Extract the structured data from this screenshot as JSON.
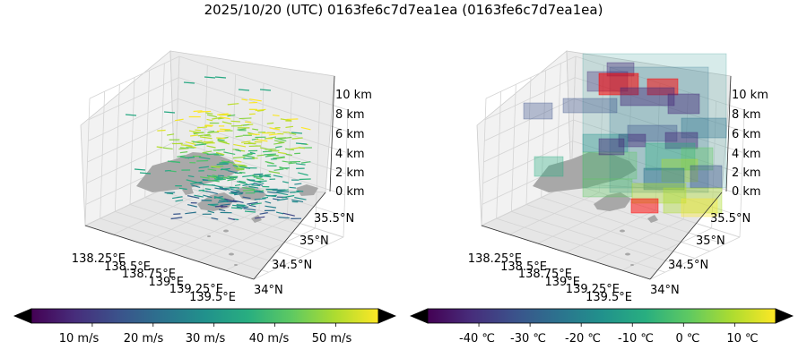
{
  "figure": {
    "title": "2025/10/20 (UTC) 0163fe6c7d7ea1ea (0163fe6c7d7ea1ea)"
  },
  "chart_data": [
    {
      "type": "3d-vector-field",
      "panel": "wind",
      "x_tick_labels": [
        "138.25°E",
        "138.5°E",
        "138.75°E",
        "139°E",
        "139.25°E",
        "139.5°E"
      ],
      "y_tick_labels": [
        "34°N",
        "34.5°N",
        "35°N",
        "35.5°N"
      ],
      "z_tick_labels": [
        "0 km",
        "2 km",
        "4 km",
        "6 km",
        "8 km",
        "10 km"
      ],
      "colorbar": {
        "colormap": "viridis",
        "extend": "both",
        "under_color": "#000000",
        "over_color": "#ff0000",
        "range": [
          0,
          57
        ],
        "ticks": [
          10,
          20,
          30,
          40,
          50
        ],
        "tick_labels": [
          "10 m/s",
          "20 m/s",
          "30 m/s",
          "40 m/s",
          "50 m/s"
        ]
      },
      "land_color": "#a8a8a8"
    },
    {
      "type": "3d-voxel",
      "panel": "temperature",
      "x_tick_labels": [
        "138.25°E",
        "138.5°E",
        "138.75°E",
        "139°E",
        "139.25°E",
        "139.5°E"
      ],
      "y_tick_labels": [
        "34°N",
        "34.5°N",
        "35°N",
        "35.5°N"
      ],
      "z_tick_labels": [
        "0 km",
        "2 km",
        "4 km",
        "6 km",
        "8 km",
        "10 km"
      ],
      "colorbar": {
        "colormap": "viridis",
        "extend": "both",
        "under_color": "#ff0000",
        "over_color": "#000000",
        "range": [
          -50,
          18
        ],
        "ticks": [
          -40,
          -30,
          -20,
          -10,
          0,
          10
        ],
        "tick_labels": [
          "-40 ℃",
          "-30 ℃",
          "-20 ℃",
          "-10 ℃",
          "0 ℃",
          "10 ℃"
        ]
      },
      "land_color": "#a8a8a8"
    }
  ]
}
